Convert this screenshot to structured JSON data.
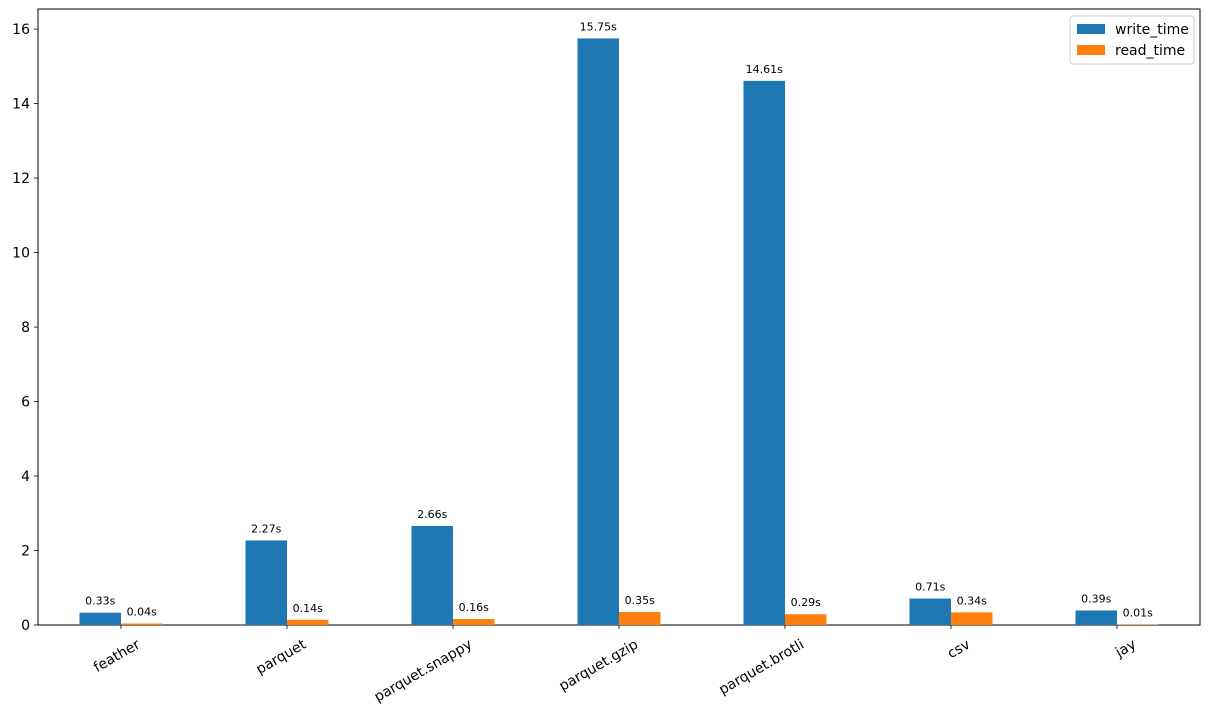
{
  "chart_data": {
    "type": "bar",
    "categories": [
      "feather",
      "parquet",
      "parquet.snappy",
      "parquet.gzip",
      "parquet.brotli",
      "csv",
      "jay"
    ],
    "series": [
      {
        "name": "write_time",
        "color": "#1f77b4",
        "values": [
          0.33,
          2.27,
          2.66,
          15.75,
          14.61,
          0.71,
          0.39
        ],
        "labels": [
          "0.33s",
          "2.27s",
          "2.66s",
          "15.75s",
          "14.61s",
          "0.71s",
          "0.39s"
        ]
      },
      {
        "name": "read_time",
        "color": "#ff7f0e",
        "values": [
          0.04,
          0.14,
          0.16,
          0.35,
          0.29,
          0.34,
          0.01
        ],
        "labels": [
          "0.04s",
          "0.14s",
          "0.16s",
          "0.35s",
          "0.29s",
          "0.34s",
          "0.01s"
        ]
      }
    ],
    "yticks": [
      "0",
      "2",
      "4",
      "6",
      "8",
      "10",
      "12",
      "14",
      "16"
    ],
    "ylim": [
      0,
      16.54
    ],
    "xtick_rotation": 30,
    "legend_position": "upper right",
    "grid": false
  }
}
